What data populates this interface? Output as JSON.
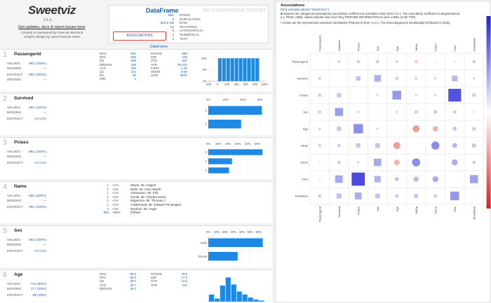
{
  "header": {
    "logo": "Sweetviz",
    "version": "2.1.3",
    "link": "Get updates, docs & report issues here",
    "credit1": "Created & maintained by Francois Bertrand",
    "credit2": "Graphic design by Jean-Francois Hains"
  },
  "dataframe": {
    "title": "DataFrame",
    "stats": [
      {
        "value": "891",
        "label": "ROWS"
      },
      {
        "value": "0",
        "label": "DUPLICATES"
      },
      {
        "value": "322.8 KB",
        "label": "RAM"
      },
      {
        "value": "12",
        "label": "FEATURES"
      },
      {
        "value": "5",
        "label": "CATEGORICAL"
      },
      {
        "value": "3",
        "label": "NUMERICAL"
      },
      {
        "value": "4",
        "label": "TEXT"
      }
    ],
    "button": "ASSOCIATIONS",
    "target": "NO COMPARISON TARGET",
    "tab": "DataFrame"
  },
  "features": [
    {
      "index": "1",
      "name": "PassengerId",
      "summary": [
        [
          "VALUES:",
          "891 (100%)"
        ],
        [
          "MISSING:",
          "---"
        ],
        [
          "DISTINCT:",
          "891 (100%)"
        ],
        [
          "ZEROES:",
          "---"
        ]
      ],
      "stats1": [
        [
          "MAX",
          "891"
        ],
        [
          "95%",
          "846"
        ],
        [
          "Q3",
          "668"
        ],
        [
          "MEDIAN",
          "446"
        ],
        [
          "AVG",
          "446"
        ],
        [
          "Q1",
          "224"
        ],
        [
          "5%",
          "45"
        ],
        [
          "MIN",
          "1"
        ]
      ],
      "stats2": [
        [
          "RANGE",
          "890"
        ],
        [
          "IQR",
          "445"
        ],
        [
          "STD",
          "257"
        ],
        [
          "VAR",
          "66,231"
        ],
        [
          "KURT.",
          "-1.20"
        ],
        [
          "SKEW",
          "0.00"
        ],
        [
          "SUM",
          "397K"
        ]
      ],
      "chart": {
        "type": "histogram",
        "bins": [
          1,
          90,
          179,
          268,
          357,
          446,
          535,
          624,
          713,
          802,
          891
        ],
        "values": [
          10,
          10,
          10,
          10,
          10,
          10,
          10,
          10,
          10,
          10
        ],
        "color": "#1e88e5",
        "xlim": [
          -200,
          1000
        ],
        "xticks": [
          -200,
          0,
          200,
          400,
          600,
          800,
          1000
        ],
        "ylim": [
          0,
          11
        ],
        "yticks": [
          {
            "value": 0,
            "label": "0%"
          },
          {
            "value": 5,
            "label": "5%"
          },
          {
            "value": 10,
            "label": "10%"
          }
        ]
      }
    },
    {
      "index": "2",
      "name": "Survived",
      "summary": [
        [
          "VALUES:",
          "891 (100%)"
        ],
        [
          "MISSING:",
          "---"
        ],
        [
          "DISTINCT:",
          "2 (<1%)"
        ]
      ],
      "chart": {
        "type": "bar",
        "categories": [
          "0",
          "1"
        ],
        "values": [
          62,
          38
        ],
        "color": "#1e88e5",
        "xlim": [
          0,
          65
        ],
        "xticks": [
          {
            "value": 0,
            "label": "0%"
          },
          {
            "value": 20,
            "label": "20%"
          },
          {
            "value": 40,
            "label": "40%"
          },
          {
            "value": 60,
            "label": "60%"
          }
        ]
      }
    },
    {
      "index": "3",
      "name": "Pclass",
      "summary": [
        [
          "VALUES:",
          "891 (100%)"
        ],
        [
          "MISSING:",
          "---"
        ],
        [
          "DISTINCT:",
          "3 (<1%)"
        ]
      ],
      "chart": {
        "type": "bar",
        "categories": [
          "3",
          "1",
          "2"
        ],
        "values": [
          55,
          24,
          21
        ],
        "color": "#1e88e5",
        "xlim": [
          0,
          57
        ],
        "xticks": [
          {
            "value": 0,
            "label": "0%"
          },
          {
            "value": 10,
            "label": "10%"
          },
          {
            "value": 20,
            "label": "20%"
          },
          {
            "value": 30,
            "label": "30%"
          },
          {
            "value": 40,
            "label": "40%"
          },
          {
            "value": 50,
            "label": "50%"
          }
        ]
      }
    },
    {
      "index": "4",
      "name": "Name",
      "summary": [
        [
          "VALUES:",
          "891 (100%)"
        ],
        [
          "MISSING:",
          "---"
        ],
        [
          "DISTINCT:",
          "891 (100%)"
        ]
      ],
      "chart": {
        "type": "list",
        "rows": [
          [
            "1",
            "<1%",
            "Meyer, Mr. August"
          ],
          [
            "1",
            "<1%",
            "Betts, Mr. Karl Howell"
          ],
          [
            "1",
            "<1%",
            "Johansson, Mr. Erik"
          ],
          [
            "1",
            "<1%",
            "Sivola, Mr. Charles Henry"
          ],
          [
            "1",
            "<1%",
            "Kilgannon, Mr. Thomas J"
          ],
          [
            "1",
            "<1%",
            "Calderhead, Mr. Edward Pennington"
          ],
          [
            "1",
            "<1%",
            "Woolner, Mr. Hugh"
          ],
          [
            "884",
            ">99%",
            "(Other)"
          ]
        ]
      }
    },
    {
      "index": "5",
      "name": "Sex",
      "summary": [
        [
          "VALUES:",
          "891 (100%)"
        ],
        [
          "MISSING:",
          "---"
        ],
        [
          "DISTINCT:",
          "2 (<1%)"
        ]
      ],
      "chart": {
        "type": "bar",
        "categories": [
          "male",
          "female"
        ],
        "values": [
          65,
          35
        ],
        "color": "#1e88e5",
        "xlim": [
          0,
          67
        ],
        "xticks": [
          {
            "value": 0,
            "label": "0%"
          },
          {
            "value": 10,
            "label": "10%"
          },
          {
            "value": 20,
            "label": "20%"
          },
          {
            "value": 30,
            "label": "30%"
          },
          {
            "value": 40,
            "label": "40%"
          },
          {
            "value": 50,
            "label": "50%"
          },
          {
            "value": 60,
            "label": "60%"
          }
        ]
      }
    },
    {
      "index": "6",
      "name": "Age",
      "summary": [
        [
          "VALUES:",
          "714 (80%)"
        ],
        [
          "MISSING:",
          "177 (20%)"
        ],
        [
          "DISTINCT:",
          "88 (10%)"
        ]
      ],
      "stats1": [
        [
          "MAX",
          "80.0"
        ],
        [
          "95%",
          "56.0"
        ],
        [
          "Q3",
          "38.0"
        ],
        [
          "AVG",
          "29.7"
        ],
        [
          "MEDIAN",
          "28.0"
        ]
      ],
      "stats2": [
        [
          "RANGE",
          "79.6"
        ],
        [
          "IQR",
          "17.9"
        ],
        [
          "STD",
          "14.5"
        ],
        [
          "VAR",
          "211"
        ]
      ],
      "chart": {
        "type": "histogram",
        "bins": [
          0.42,
          8.38,
          16.34,
          24.3,
          32.26,
          40.21,
          48.17,
          56.13,
          64.09,
          72.05,
          80
        ],
        "values": [
          7,
          3,
          16,
          24,
          17,
          10,
          7,
          4,
          2,
          1
        ],
        "color": "#1e88e5",
        "xlim": [
          0,
          80
        ],
        "ylim": [
          0,
          25
        ]
      }
    }
  ],
  "associations": {
    "title": "Associations",
    "lines": [
      "[Only including dataset \"DataFrame\"]",
      "■ Squares are categorical associations (uncertainty coefficient & correlation ratio) from 0 to 1. The uncertainty coefficient is assymmetrical,",
      "(i.e. ROW LABEL values indicate how much they PROVIDE INFORMATION to each LABEL at the TOP).",
      "• Circles are the symmetrical numerical correlations (Pearson's) from -1 to 1. The trivial diagonal is intentionally left blank for clarity."
    ],
    "labels": [
      "PassengerId",
      "Survived",
      "Pclass",
      "Sex",
      "Age",
      "SibSp",
      "Parch",
      "Fare",
      "Embarked"
    ],
    "matrix": [
      [
        null,
        0.03,
        0.04,
        0.04,
        0.04,
        -0.06,
        0.0,
        0.01,
        0.04
      ],
      [
        0.03,
        null,
        0.09,
        0.2,
        0.04,
        0.03,
        0.02,
        0.15,
        0.02
      ],
      [
        0.04,
        0.08,
        null,
        0.02,
        0.35,
        0.02,
        0.02,
        0.75,
        0.05
      ],
      [
        0.04,
        0.3,
        0.02,
        null,
        0.02,
        0.05,
        0.05,
        0.04,
        0.01
      ],
      [
        0.04,
        0.08,
        0.4,
        0.02,
        null,
        -0.31,
        -0.19,
        0.1,
        0.05
      ],
      [
        -0.06,
        0.04,
        0.08,
        0.1,
        -0.31,
        null,
        0.41,
        0.16,
        0.07
      ],
      [
        0.0,
        0.04,
        0.02,
        0.25,
        -0.19,
        0.41,
        null,
        0.22,
        0.04
      ],
      [
        0.01,
        0.26,
        0.8,
        0.19,
        0.1,
        0.16,
        0.22,
        null,
        0.3
      ],
      [
        0.04,
        0.11,
        0.22,
        0.1,
        0.05,
        0.07,
        0.04,
        0.35,
        null
      ]
    ]
  }
}
